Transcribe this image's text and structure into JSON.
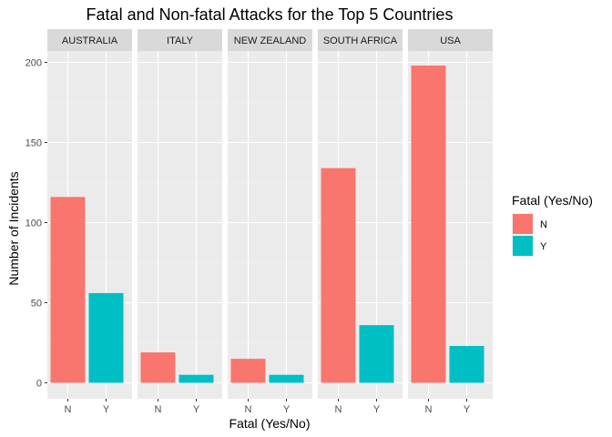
{
  "chart_data": {
    "type": "bar",
    "title": "Fatal and Non-fatal Attacks for the Top 5 Countries",
    "xlabel": "Fatal (Yes/No)",
    "ylabel": "Number of Incidents",
    "ylim": [
      0,
      210
    ],
    "yticks": [
      0,
      50,
      100,
      150,
      200
    ],
    "grid": true,
    "legend": {
      "title": "Fatal (Yes/No)",
      "placement": "right",
      "entries": [
        {
          "label": "N",
          "color": "#F8766D"
        },
        {
          "label": "Y",
          "color": "#00BFC4"
        }
      ]
    },
    "categories": [
      "N",
      "Y"
    ],
    "facets": [
      {
        "name": "AUSTRALIA",
        "values": [
          116,
          56
        ]
      },
      {
        "name": "ITALY",
        "values": [
          19,
          5
        ]
      },
      {
        "name": "NEW ZEALAND",
        "values": [
          15,
          5
        ]
      },
      {
        "name": "SOUTH AFRICA",
        "values": [
          134,
          36
        ]
      },
      {
        "name": "USA",
        "values": [
          198,
          23
        ]
      }
    ]
  }
}
